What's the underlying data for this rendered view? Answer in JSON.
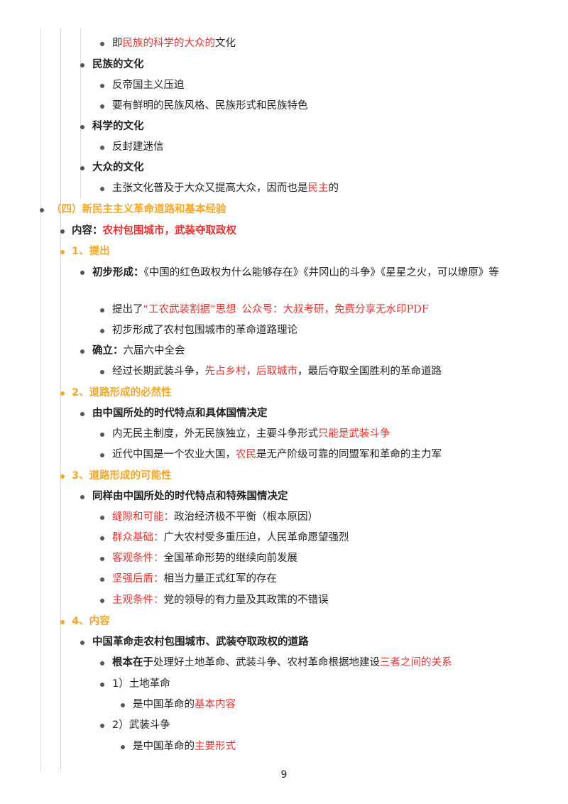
{
  "lines": [
    {
      "prefix": "即",
      "hl": "民族的科学的大众的",
      "suffix": "文化"
    },
    {
      "text": "民族的文化"
    },
    {
      "text": "反帝国主义压迫"
    },
    {
      "text": "要有鲜明的民族风格、民族形式和民族特色"
    },
    {
      "text": "科学的文化"
    },
    {
      "text": "反封建迷信"
    },
    {
      "text": "大众的文化"
    },
    {
      "prefix": "主张文化普及于大众又提高大众，因而也是",
      "hl": "民主",
      "suffix": "的"
    },
    {
      "text": "（四）新民主主义革命道路和基本经验"
    },
    {
      "label": "内容：",
      "hl": "农村包围城市，武装夺取政权"
    },
    {
      "text": "1、提出"
    },
    {
      "label": "初步形成：",
      "text": "《中国的红色政权为什么能够存在》《井冈山的斗争》《星星之火，可以燎原》等"
    },
    {
      "prefix": "提出了",
      "hl": "“工农武装割据”思想",
      "wm": "公众号：大叔考研，免费分享无水印PDF"
    },
    {
      "text": "初步形成了农村包围城市的革命道路理论"
    },
    {
      "label": "确立：",
      "text": "六届六中全会"
    },
    {
      "prefix": "经过长期武装斗争，",
      "hl": "先占乡村，后取城市",
      "suffix": "，最后夺取全国胜利的革命道路"
    },
    {
      "text": "2、道路形成的必然性"
    },
    {
      "text": "由中国所处的时代特点和具体国情决定"
    },
    {
      "prefix": "内无民主制度，外无民族独立，主要斗争形式",
      "hl": "只能是武装斗争"
    },
    {
      "prefix": "近代中国是一个农业大国，",
      "hl": "农民",
      "suffix": "是无产阶级可靠的同盟军和革命的主力军"
    },
    {
      "text": "3、道路形成的可能性"
    },
    {
      "text": "同样由中国所处的时代特点和特殊国情决定"
    },
    {
      "hl": "缝隙和可能：",
      "suffix": "政治经济极不平衡（根本原因）"
    },
    {
      "hl": "群众基础：",
      "suffix": "广大农村受多重压迫，人民革命愿望强烈"
    },
    {
      "hl": "客观条件：",
      "suffix": "全国革命形势的继续向前发展"
    },
    {
      "hl": "坚强后盾：",
      "suffix": "相当力量正式红军的存在"
    },
    {
      "hl": "主观条件：",
      "suffix": "党的领导的有力量及其政策的不错误"
    },
    {
      "text": "4、内容"
    },
    {
      "text": "中国革命走农村包围城市、武装夺取政权的道路"
    },
    {
      "label": "根本在于",
      "prefix": "处理好土地革命、武装斗争、农村革命根据地建设",
      "hl": "三者之间的关系"
    },
    {
      "text": "1）土地革命"
    },
    {
      "prefix": "是中国革命的",
      "hl": "基本内容"
    },
    {
      "text": "2）武装斗争"
    },
    {
      "prefix": "是中国革命的",
      "hl": "主要形式"
    }
  ],
  "page_number": "9"
}
